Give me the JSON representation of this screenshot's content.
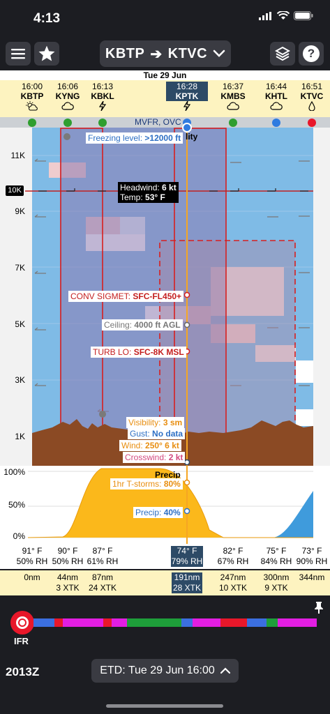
{
  "status": {
    "time": "4:13"
  },
  "nav": {
    "from": "KBTP",
    "arrow": "➔",
    "to": "KTVC",
    "menu_icon": "hamburger-icon",
    "favorite_icon": "star-icon",
    "layers_icon": "layers-icon",
    "help_label": "?"
  },
  "date": "Tue 29 Jun",
  "waypoints": [
    {
      "time": "16:00",
      "name": "KBTP",
      "icon": "partly-sunny",
      "category_color": "#2f9e2f"
    },
    {
      "time": "16:06",
      "name": "KYNG",
      "icon": "cloud",
      "category_color": "#2f9e2f"
    },
    {
      "time": "16:13",
      "name": "KBKL",
      "icon": "lightning",
      "category_color": "#2f9e2f"
    },
    {
      "time": "16:28",
      "name": "KPTK",
      "icon": "lightning",
      "category_color": "#2f7be0"
    },
    {
      "time": "16:37",
      "name": "KMBS",
      "icon": "cloud",
      "category_color": "#2f9e2f"
    },
    {
      "time": "16:44",
      "name": "KHTL",
      "icon": "cloud",
      "category_color": "#2f7be0"
    },
    {
      "time": "16:51",
      "name": "KTVC",
      "icon": "drizzle",
      "category_color": "#e8172a"
    }
  ],
  "category_label": "MVFR, OVC",
  "y_axis": {
    "labels": [
      "11K",
      "9K",
      "7K",
      "5K",
      "3K",
      "1K"
    ],
    "selected": "10K"
  },
  "callouts": {
    "freezing_label": "Freezing level:",
    "freezing_value": ">12000 ft",
    "visibility_partial": "lity",
    "headwind_label": "Headwind:",
    "headwind_value": "6 kt",
    "temp_label": "Temp:",
    "temp_value": "53° F",
    "sigmet_label": "CONV SIGMET:",
    "sigmet_value": "SFC-FL450+",
    "ceiling_label": "Ceiling:",
    "ceiling_value": "4000 ft AGL",
    "turb_label": "TURB LO:",
    "turb_value": "SFC-8K MSL",
    "visibility_label": "Visibility:",
    "visibility_value": "3 sm",
    "gust_label": "Gust:",
    "gust_value": "No data",
    "wind_label": "Wind:",
    "wind_value": "250° 6 kt",
    "crosswind_label": "Crosswind:",
    "crosswind_value": "2 kt",
    "precip_title": "Precip",
    "tstorm_label": "1hr T-storms:",
    "tstorm_value": "80%",
    "precip_label": "Precip:",
    "precip_value": "40%"
  },
  "precip_axis": [
    "100%",
    "50%",
    "0%"
  ],
  "temps": [
    {
      "temp": "91° F",
      "rh": "50% RH"
    },
    {
      "temp": "90° F",
      "rh": "50% RH"
    },
    {
      "temp": "87° F",
      "rh": "61% RH"
    },
    {
      "temp": "74° F",
      "rh": "79% RH"
    },
    {
      "temp": "82° F",
      "rh": "67% RH"
    },
    {
      "temp": "75° F",
      "rh": "84% RH"
    },
    {
      "temp": "73° F",
      "rh": "90% RH"
    }
  ],
  "distances": [
    {
      "dist": "0nm",
      "xtk": ""
    },
    {
      "dist": "44nm",
      "xtk": "3 XTK"
    },
    {
      "dist": "87nm",
      "xtk": "24 XTK"
    },
    {
      "dist": "191nm",
      "xtk": "28 XTK"
    },
    {
      "dist": "247nm",
      "xtk": "10 XTK"
    },
    {
      "dist": "300nm",
      "xtk": "9 XTK"
    },
    {
      "dist": "344nm",
      "xtk": ""
    }
  ],
  "bottom": {
    "flight_category": "IFR",
    "zulu_time": "2013Z",
    "etd": "ETD: Tue 29 Jun 16:00",
    "strip_colors": [
      "#3b6fe0",
      "#e8172a",
      "#e21ee2",
      "#e8172a",
      "#e21ee2",
      "#1e9e3a",
      "#3b6fe0",
      "#e21ee2",
      "#e8172a",
      "#3b6fe0",
      "#1e9e3a",
      "#e21ee2"
    ]
  }
}
